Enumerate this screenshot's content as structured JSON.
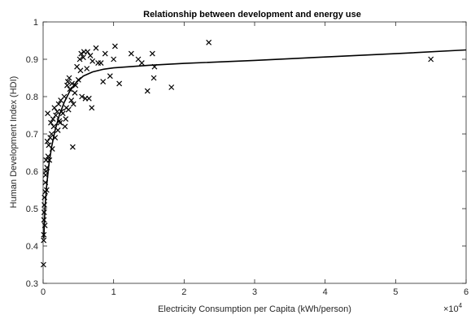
{
  "chart_data": {
    "type": "scatter",
    "title": "Relationship between development and energy use",
    "xlabel": "Electricity Consumption per Capita (kWh/person)",
    "ylabel": "Human Development Index (HDI)",
    "x_exponent_label": "×10",
    "x_exponent_power": "4",
    "xlim": [
      0,
      60000
    ],
    "ylim": [
      0.3,
      1.0
    ],
    "x_ticks": [
      0,
      10000,
      20000,
      30000,
      40000,
      50000,
      60000
    ],
    "x_tick_labels": [
      "0",
      "1",
      "2",
      "3",
      "4",
      "5",
      "6"
    ],
    "y_ticks": [
      0.3,
      0.4,
      0.5,
      0.6,
      0.7,
      0.8,
      0.9,
      1.0
    ],
    "y_tick_labels": [
      "0.3",
      "0.4",
      "0.5",
      "0.6",
      "0.7",
      "0.8",
      "0.9",
      "1"
    ],
    "grid": false,
    "marker_color": "#000000",
    "series": [
      {
        "marker": "x",
        "points": [
          [
            50,
            0.35
          ],
          [
            80,
            0.415
          ],
          [
            100,
            0.43
          ],
          [
            120,
            0.47
          ],
          [
            150,
            0.49
          ],
          [
            180,
            0.51
          ],
          [
            200,
            0.53
          ],
          [
            250,
            0.455
          ],
          [
            300,
            0.545
          ],
          [
            320,
            0.57
          ],
          [
            350,
            0.59
          ],
          [
            400,
            0.6
          ],
          [
            420,
            0.63
          ],
          [
            500,
            0.55
          ],
          [
            550,
            0.61
          ],
          [
            600,
            0.68
          ],
          [
            650,
            0.755
          ],
          [
            700,
            0.64
          ],
          [
            800,
            0.67
          ],
          [
            900,
            0.63
          ],
          [
            1000,
            0.69
          ],
          [
            1100,
            0.73
          ],
          [
            1200,
            0.7
          ],
          [
            1300,
            0.66
          ],
          [
            1400,
            0.74
          ],
          [
            1500,
            0.72
          ],
          [
            1600,
            0.77
          ],
          [
            1700,
            0.69
          ],
          [
            1800,
            0.75
          ],
          [
            2000,
            0.76
          ],
          [
            2100,
            0.71
          ],
          [
            2200,
            0.78
          ],
          [
            2300,
            0.735
          ],
          [
            2400,
            0.73
          ],
          [
            2500,
            0.79
          ],
          [
            2600,
            0.76
          ],
          [
            2800,
            0.755
          ],
          [
            3000,
            0.8
          ],
          [
            3100,
            0.72
          ],
          [
            3200,
            0.74
          ],
          [
            3300,
            0.77
          ],
          [
            3400,
            0.83
          ],
          [
            3500,
            0.84
          ],
          [
            3600,
            0.765
          ],
          [
            3700,
            0.85
          ],
          [
            3800,
            0.82
          ],
          [
            4000,
            0.79
          ],
          [
            4100,
            0.835
          ],
          [
            4200,
            0.665
          ],
          [
            4300,
            0.78
          ],
          [
            4500,
            0.81
          ],
          [
            4600,
            0.83
          ],
          [
            4800,
            0.88
          ],
          [
            5000,
            0.845
          ],
          [
            5200,
            0.9
          ],
          [
            5300,
            0.87
          ],
          [
            5400,
            0.915
          ],
          [
            5500,
            0.8
          ],
          [
            5700,
            0.905
          ],
          [
            5800,
            0.92
          ],
          [
            6000,
            0.795
          ],
          [
            6200,
            0.875
          ],
          [
            6300,
            0.92
          ],
          [
            6500,
            0.795
          ],
          [
            6700,
            0.91
          ],
          [
            6900,
            0.77
          ],
          [
            7000,
            0.895
          ],
          [
            7500,
            0.93
          ],
          [
            7800,
            0.89
          ],
          [
            8200,
            0.89
          ],
          [
            8500,
            0.84
          ],
          [
            8800,
            0.915
          ],
          [
            9500,
            0.855
          ],
          [
            10000,
            0.9
          ],
          [
            10200,
            0.935
          ],
          [
            10800,
            0.835
          ],
          [
            12500,
            0.915
          ],
          [
            13500,
            0.9
          ],
          [
            14000,
            0.89
          ],
          [
            14800,
            0.815
          ],
          [
            15500,
            0.915
          ],
          [
            15700,
            0.85
          ],
          [
            15800,
            0.88
          ],
          [
            18200,
            0.825
          ],
          [
            23500,
            0.945
          ],
          [
            55000,
            0.9
          ]
        ]
      },
      {
        "type": "line",
        "points": [
          [
            100,
            0.42
          ],
          [
            250,
            0.5
          ],
          [
            500,
            0.56
          ],
          [
            800,
            0.615
          ],
          [
            1200,
            0.665
          ],
          [
            1700,
            0.71
          ],
          [
            2300,
            0.75
          ],
          [
            3000,
            0.785
          ],
          [
            3800,
            0.815
          ],
          [
            4700,
            0.838
          ],
          [
            5700,
            0.855
          ],
          [
            7000,
            0.866
          ],
          [
            8500,
            0.873
          ],
          [
            10000,
            0.877
          ],
          [
            15000,
            0.884
          ],
          [
            20000,
            0.889
          ],
          [
            30000,
            0.897
          ],
          [
            40000,
            0.906
          ],
          [
            50000,
            0.915
          ],
          [
            60000,
            0.925
          ]
        ]
      }
    ]
  }
}
